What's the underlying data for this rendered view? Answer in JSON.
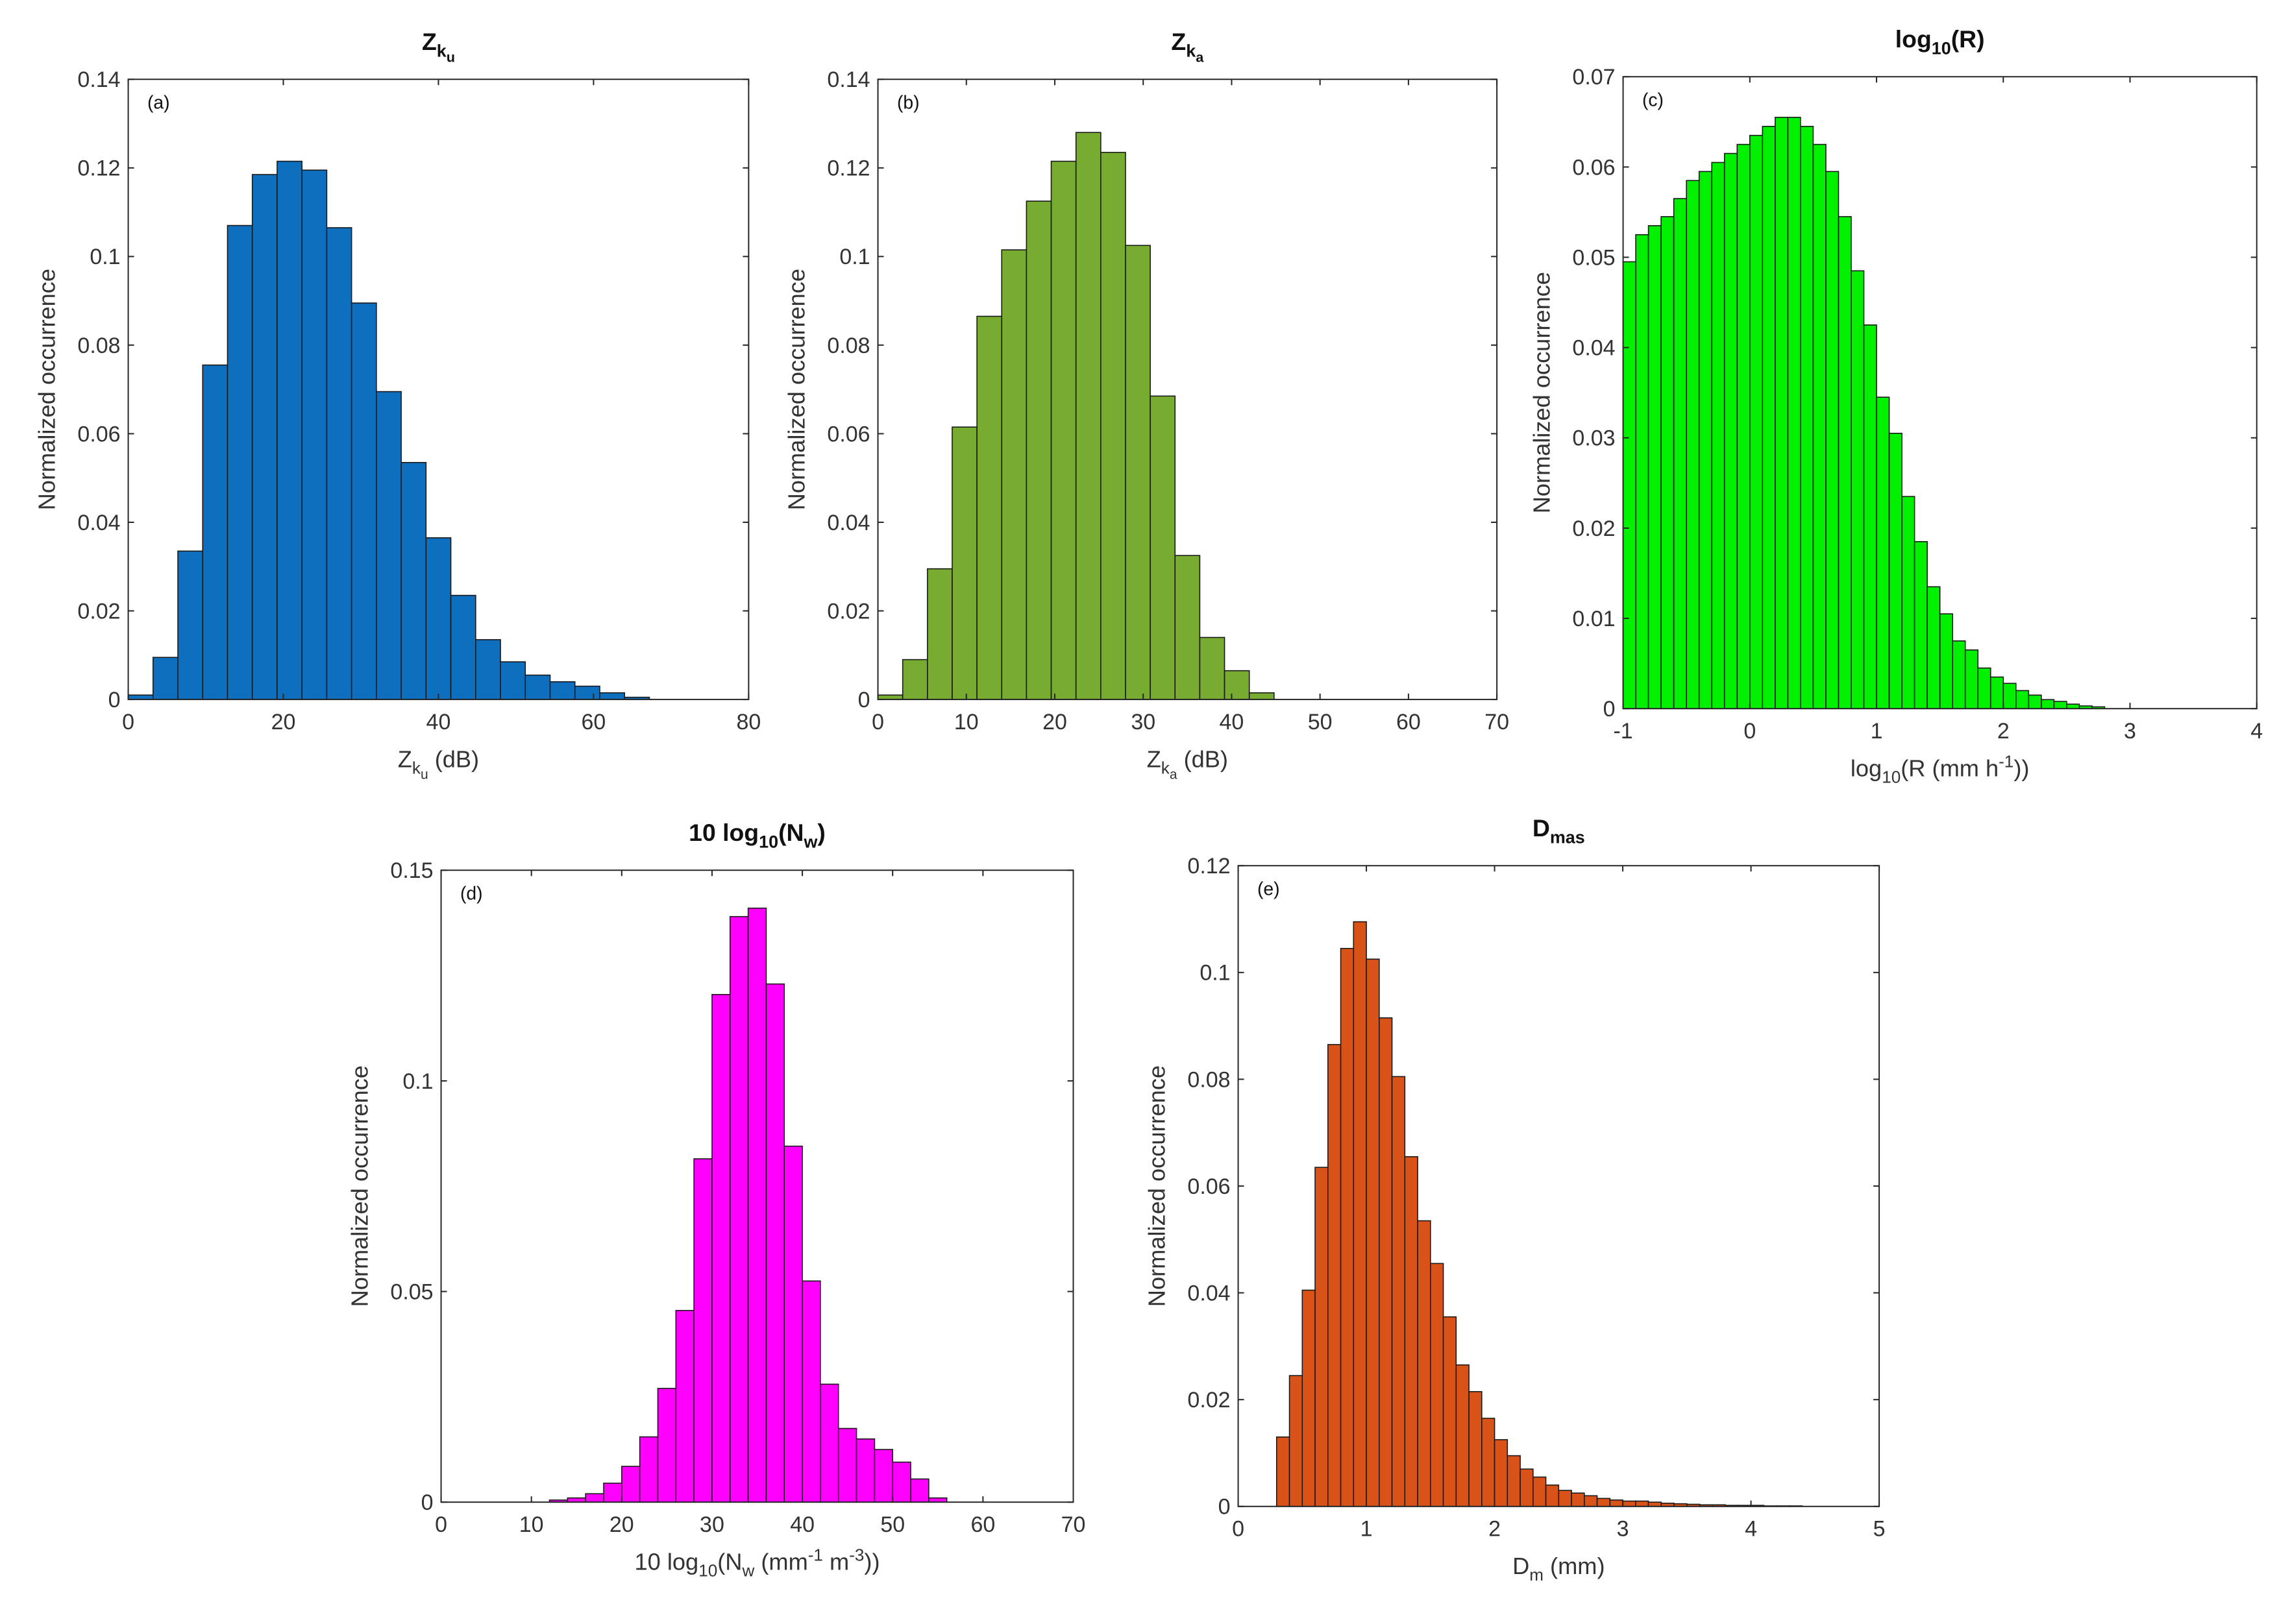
{
  "chart_data": [
    {
      "id": "a",
      "type": "bar",
      "panel_label": "(a)",
      "title": {
        "main": "Z",
        "sub": "k",
        "subsub": "u"
      },
      "xlabel": {
        "main": "Z",
        "sub": "k",
        "subsub": "u",
        "rest": " (dB)"
      },
      "ylabel": "Normalized occurrence",
      "xlim": [
        0,
        80
      ],
      "ylim": [
        0,
        0.14
      ],
      "xticks": [
        "0",
        "20",
        "40",
        "60",
        "80"
      ],
      "xtick_values": [
        0,
        20,
        40,
        60,
        80
      ],
      "yticks": [
        "0",
        "0.02",
        "0.04",
        "0.06",
        "0.08",
        "0.1",
        "0.12",
        "0.14"
      ],
      "ytick_values": [
        0,
        0.02,
        0.04,
        0.06,
        0.08,
        0.1,
        0.12,
        0.14
      ],
      "color": "#0f6fbf",
      "bin_start": 0,
      "bin_width": 3.2,
      "values": [
        0.001,
        0.0095,
        0.0335,
        0.0755,
        0.107,
        0.1185,
        0.1215,
        0.1195,
        0.1065,
        0.0895,
        0.0695,
        0.0535,
        0.0365,
        0.0235,
        0.0135,
        0.0085,
        0.0055,
        0.004,
        0.003,
        0.0015,
        0.0005
      ]
    },
    {
      "id": "b",
      "type": "bar",
      "panel_label": "(b)",
      "title": {
        "main": "Z",
        "sub": "k",
        "subsub": "a"
      },
      "xlabel": {
        "main": "Z",
        "sub": "k",
        "subsub": "a",
        "rest": " (dB)"
      },
      "ylabel": "Normalized occurrence",
      "xlim": [
        0,
        70
      ],
      "ylim": [
        0,
        0.14
      ],
      "xticks": [
        "0",
        "10",
        "20",
        "30",
        "40",
        "50",
        "60",
        "70"
      ],
      "xtick_values": [
        0,
        10,
        20,
        30,
        40,
        50,
        60,
        70
      ],
      "yticks": [
        "0",
        "0.02",
        "0.04",
        "0.06",
        "0.08",
        "0.1",
        "0.12",
        "0.14"
      ],
      "ytick_values": [
        0,
        0.02,
        0.04,
        0.06,
        0.08,
        0.1,
        0.12,
        0.14
      ],
      "color": "#77ac30",
      "bin_start": 0,
      "bin_width": 2.8,
      "values": [
        0.001,
        0.009,
        0.0295,
        0.0615,
        0.0865,
        0.1015,
        0.1125,
        0.1215,
        0.128,
        0.1235,
        0.1025,
        0.0685,
        0.0325,
        0.014,
        0.0065,
        0.0015
      ]
    },
    {
      "id": "c",
      "type": "bar",
      "panel_label": "(c)",
      "title": {
        "main": "log",
        "sub": "10",
        "rest": "(R)"
      },
      "xlabel": {
        "main": "log",
        "sub": "10",
        "rest": "(R (mm h",
        "sup": "-1",
        "end": "))"
      },
      "ylabel": "Normalized occurrence",
      "xlim": [
        -1,
        4
      ],
      "ylim": [
        0,
        0.07
      ],
      "xticks": [
        "-1",
        "0",
        "1",
        "2",
        "3",
        "4"
      ],
      "xtick_values": [
        -1,
        0,
        1,
        2,
        3,
        4
      ],
      "yticks": [
        "0",
        "0.01",
        "0.02",
        "0.03",
        "0.04",
        "0.05",
        "0.06",
        "0.07"
      ],
      "ytick_values": [
        0,
        0.01,
        0.02,
        0.03,
        0.04,
        0.05,
        0.06,
        0.07
      ],
      "color": "#00f000",
      "bin_start": -1,
      "bin_width": 0.1,
      "values": [
        0.0495,
        0.0525,
        0.0535,
        0.0545,
        0.0565,
        0.0585,
        0.0595,
        0.0605,
        0.0615,
        0.0625,
        0.0635,
        0.0645,
        0.0655,
        0.0655,
        0.0645,
        0.0625,
        0.0595,
        0.0545,
        0.0485,
        0.0425,
        0.0345,
        0.0305,
        0.0235,
        0.0185,
        0.0135,
        0.0105,
        0.0075,
        0.0065,
        0.0045,
        0.0035,
        0.0028,
        0.002,
        0.0015,
        0.001,
        0.0008,
        0.0005,
        0.0003,
        0.0002
      ]
    },
    {
      "id": "d",
      "type": "bar",
      "panel_label": "(d)",
      "title": {
        "main": "10 log",
        "sub": "10",
        "rest": "(N",
        "sub2": "w",
        "end": ")"
      },
      "xlabel": {
        "main": "10 log",
        "sub": "10",
        "rest": "(N",
        "sub2": "w",
        "mid": " (mm",
        "sup": "-1",
        "mid2": " m",
        "sup2": "-3",
        "end": "))"
      },
      "ylabel": "Normalized occurrence",
      "xlim": [
        0,
        70
      ],
      "ylim": [
        0,
        0.15
      ],
      "xticks": [
        "0",
        "10",
        "20",
        "30",
        "40",
        "50",
        "60",
        "70"
      ],
      "xtick_values": [
        0,
        10,
        20,
        30,
        40,
        50,
        60,
        70
      ],
      "yticks": [
        "0",
        "0.05",
        "0.1",
        "0.15"
      ],
      "ytick_values": [
        0,
        0.05,
        0.1,
        0.15
      ],
      "color": "#ff00ff",
      "bin_start": 12,
      "bin_width": 2,
      "values": [
        0.0005,
        0.001,
        0.002,
        0.0045,
        0.0085,
        0.0155,
        0.027,
        0.0455,
        0.0815,
        0.1205,
        0.139,
        0.141,
        0.123,
        0.0845,
        0.0525,
        0.028,
        0.0175,
        0.015,
        0.0125,
        0.0095,
        0.0055,
        0.001
      ]
    },
    {
      "id": "e",
      "type": "bar",
      "panel_label": "(e)",
      "title": {
        "main": "D",
        "sub": "mas"
      },
      "xlabel": {
        "main": "D",
        "sub": "m",
        "rest": " (mm)"
      },
      "ylabel": "Normalized occurrence",
      "xlim": [
        0,
        5
      ],
      "ylim": [
        0,
        0.12
      ],
      "xticks": [
        "0",
        "1",
        "2",
        "3",
        "4",
        "5"
      ],
      "xtick_values": [
        0,
        1,
        2,
        3,
        4,
        5
      ],
      "yticks": [
        "0",
        "0.02",
        "0.04",
        "0.06",
        "0.08",
        "0.1",
        "0.12"
      ],
      "ytick_values": [
        0,
        0.02,
        0.04,
        0.06,
        0.08,
        0.1,
        0.12
      ],
      "color": "#d95319",
      "bin_start": 0.3,
      "bin_width": 0.1,
      "values": [
        0.013,
        0.0245,
        0.0405,
        0.0635,
        0.0865,
        0.1045,
        0.1095,
        0.1025,
        0.0915,
        0.0805,
        0.0655,
        0.0535,
        0.0455,
        0.0355,
        0.0265,
        0.0215,
        0.0165,
        0.0125,
        0.0095,
        0.007,
        0.0055,
        0.004,
        0.003,
        0.0025,
        0.002,
        0.0015,
        0.0012,
        0.001,
        0.001,
        0.0008,
        0.0006,
        0.0005,
        0.0004,
        0.0003,
        0.0003,
        0.0002,
        0.0002,
        0.0002,
        0.0001,
        0.0001,
        0.0001
      ]
    }
  ]
}
